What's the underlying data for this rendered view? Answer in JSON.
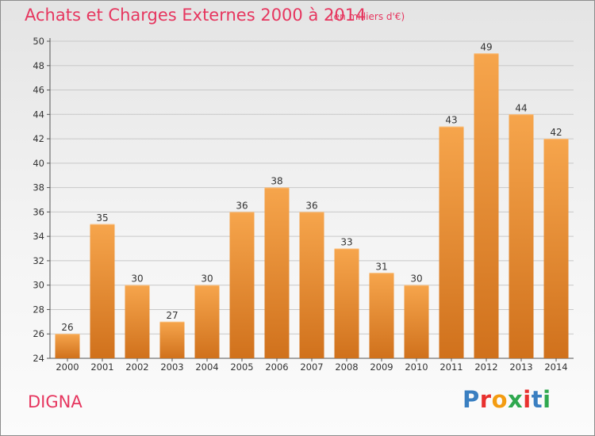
{
  "header": {
    "title": "Achats et Charges Externes 2000 à 2014",
    "unit": "(en milliers d'€)"
  },
  "footer": {
    "commune": "DIGNA",
    "logo": "Proxiti",
    "logo_colors": [
      "#3a7fc1",
      "#e8312f",
      "#f39c12",
      "#2fa84f",
      "#e8312f",
      "#3a7fc1",
      "#2fa84f"
    ]
  },
  "colors": {
    "bar_top": "#f6a54c",
    "bar_bottom": "#d0711c",
    "grid": "#c8c8c8",
    "axis": "#555555"
  },
  "chart_data": {
    "type": "bar",
    "title": "Achats et Charges Externes 2000 à 2014",
    "xlabel": "",
    "ylabel": "",
    "categories": [
      "2000",
      "2001",
      "2002",
      "2003",
      "2004",
      "2005",
      "2006",
      "2007",
      "2008",
      "2009",
      "2010",
      "2011",
      "2012",
      "2013",
      "2014"
    ],
    "values": [
      26,
      35,
      30,
      27,
      30,
      36,
      38,
      36,
      33,
      31,
      30,
      43,
      49,
      44,
      42
    ],
    "ylim": [
      24,
      50
    ],
    "yticks": [
      "24",
      "26",
      "28",
      "30",
      "32",
      "34",
      "36",
      "38",
      "40",
      "42",
      "44",
      "46",
      "48",
      "50"
    ],
    "grid": true,
    "legend": "none"
  }
}
